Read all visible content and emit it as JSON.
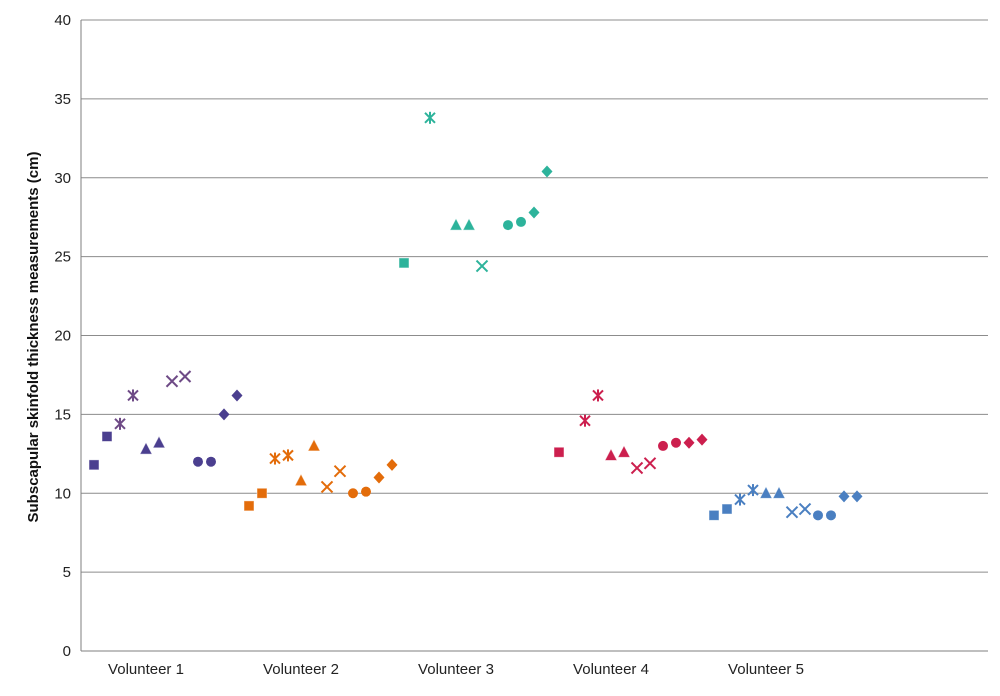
{
  "chart_data": {
    "type": "scatter",
    "title": "",
    "xlabel": "",
    "ylabel": "Subscapular skinfold thickness measurements (cm)",
    "ylim": [
      0,
      40
    ],
    "yticks": [
      0,
      5,
      10,
      15,
      20,
      25,
      30,
      35,
      40
    ],
    "grid": true,
    "legend": "none",
    "categories": [
      "Volunteer  1",
      "Volunteer 2",
      "Volunteer 3",
      "Volunteer 4",
      "Volunteer 5"
    ],
    "marker_order": [
      "square",
      "square",
      "star",
      "star",
      "triangle",
      "triangle",
      "x",
      "x",
      "circle",
      "circle",
      "diamond",
      "diamond"
    ],
    "series": [
      {
        "color": "#4b3f8f",
        "color_x": "#6e4a86",
        "values": [
          11.8,
          13.6,
          14.4,
          16.2,
          12.8,
          13.2,
          17.1,
          17.4,
          12.0,
          12.0,
          15.0,
          16.2
        ]
      },
      {
        "color": "#e36c0a",
        "color_x": "#e36c0a",
        "values": [
          9.2,
          10.0,
          12.2,
          12.4,
          10.8,
          13.0,
          10.4,
          11.4,
          10.0,
          10.1,
          11.0,
          11.8
        ]
      },
      {
        "color": "#2db39b",
        "color_x": "#2db39b",
        "values": [
          24.6,
          null,
          33.8,
          null,
          27.0,
          27.0,
          24.4,
          null,
          27.0,
          27.2,
          27.8,
          30.4
        ]
      },
      {
        "color": "#cc1f4e",
        "color_x": "#cc1f4e",
        "values": [
          12.6,
          null,
          14.6,
          16.2,
          12.4,
          12.6,
          11.6,
          11.9,
          13.0,
          13.2,
          13.2,
          13.4
        ]
      },
      {
        "color": "#4a7fc1",
        "color_x": "#4a7fc1",
        "values": [
          8.6,
          9.0,
          9.6,
          10.2,
          10.0,
          10.0,
          8.8,
          9.0,
          8.6,
          8.6,
          9.8,
          9.8
        ]
      }
    ]
  }
}
